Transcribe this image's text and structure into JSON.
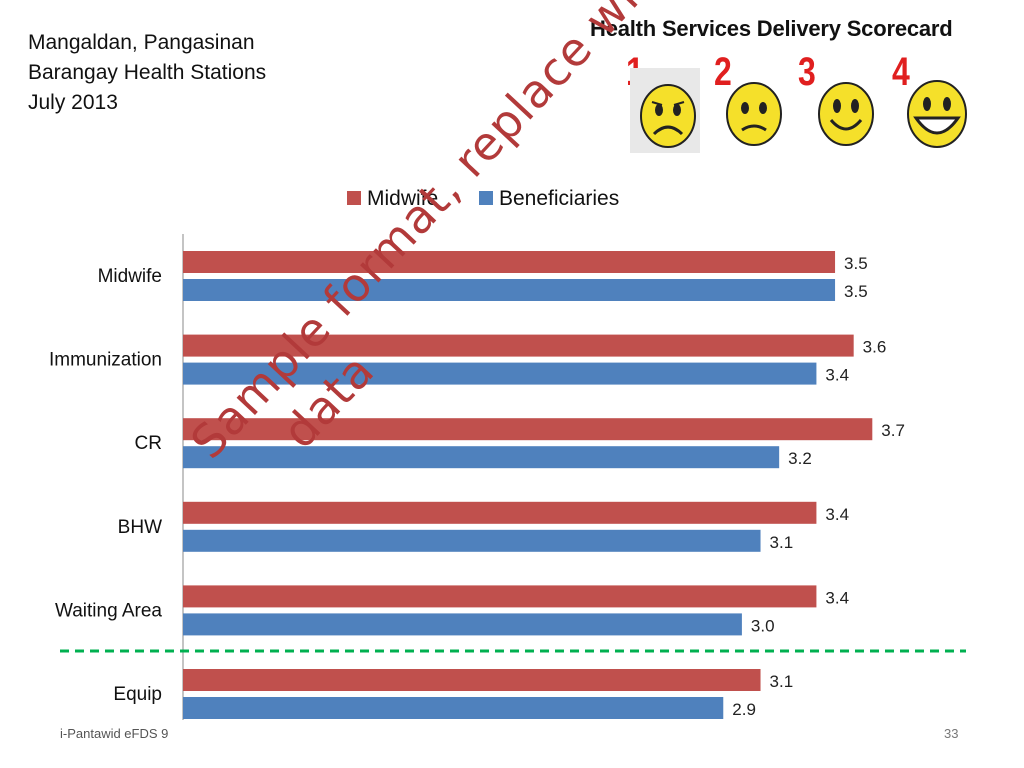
{
  "header": {
    "line1": "Mangaldan, Pangasinan",
    "line2": "Barangay Health Stations",
    "line3": "July 2013"
  },
  "scorecard": {
    "title": "Health Services Delivery Scorecard",
    "ratings": [
      {
        "num": "1",
        "face": "very-sad-face-icon"
      },
      {
        "num": "2",
        "face": "sad-face-icon"
      },
      {
        "num": "3",
        "face": "smiley-face-icon"
      },
      {
        "num": "4",
        "face": "grinning-face-icon"
      }
    ]
  },
  "watermark": {
    "line1": "Sample format, replace with local",
    "line2": "data"
  },
  "footer": {
    "left": "i-Pantawid eFDS 9",
    "page": "33"
  },
  "colors": {
    "midwife": "#c0504d",
    "beneficiaries": "#4f81bd",
    "divider": "#00b050"
  },
  "chart_data": {
    "type": "bar",
    "orientation": "horizontal",
    "categories": [
      "Midwife",
      "Immunization",
      "CR",
      "BHW",
      "Waiting Area",
      "Equip"
    ],
    "series": [
      {
        "name": "Midwife",
        "values": [
          3.5,
          3.6,
          3.7,
          3.4,
          3.4,
          3.1
        ],
        "labels": [
          "3.5",
          "3.6",
          "3.7",
          "3.4",
          "3.4",
          "3.1"
        ]
      },
      {
        "name": "Beneficiaries",
        "values": [
          3.5,
          3.4,
          3.2,
          3.1,
          3.0,
          2.9
        ],
        "labels": [
          "3.5",
          "3.4",
          "3.2",
          "3.1",
          "3.0",
          "2.9"
        ]
      }
    ],
    "xlim": [
      0,
      4
    ],
    "legend": "top-center",
    "grid": false,
    "divider_after_category": "Waiting Area"
  }
}
